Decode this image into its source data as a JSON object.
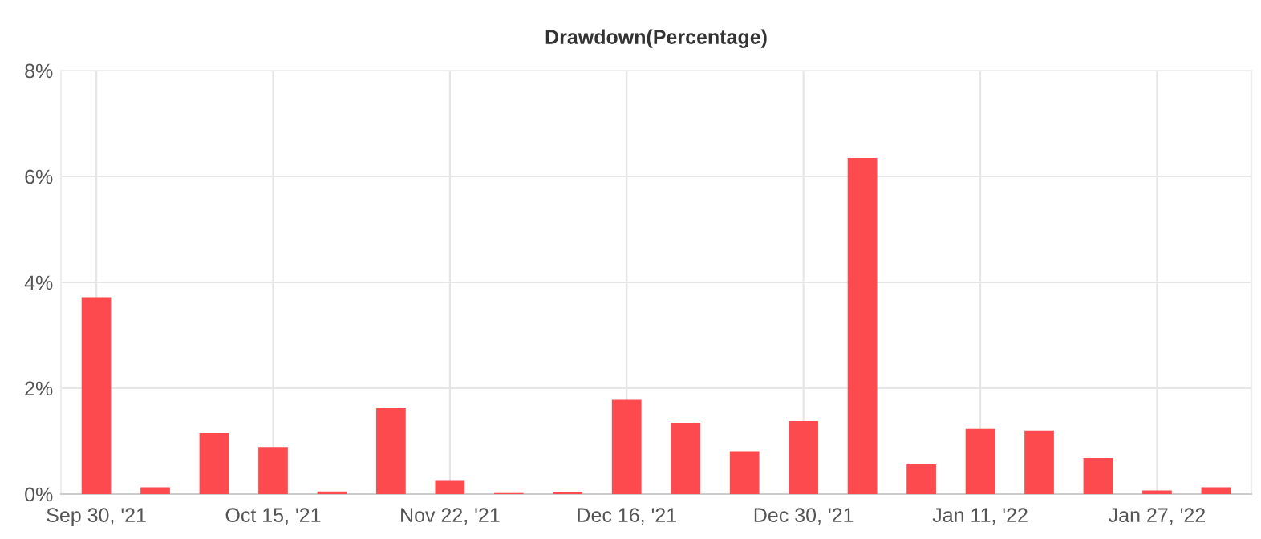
{
  "chart_data": {
    "type": "bar",
    "title": "Drawdown(Percentage)",
    "categories": [
      "Sep 30, '21",
      null,
      null,
      "Oct 15, '21",
      null,
      null,
      "Nov 22, '21",
      null,
      null,
      "Dec 16, '21",
      null,
      null,
      "Dec 30, '21",
      null,
      null,
      "Jan 11, '22",
      null,
      null,
      "Jan 27, '22",
      null
    ],
    "values": [
      3.72,
      0.13,
      1.15,
      0.89,
      0.05,
      1.62,
      0.25,
      0.02,
      0.04,
      1.78,
      1.35,
      0.81,
      1.38,
      6.35,
      0.56,
      1.23,
      1.2,
      0.68,
      0.07,
      0.13
    ],
    "color": "#fc4a4f",
    "ylim": [
      0,
      8
    ],
    "yticks": [
      {
        "value": 0,
        "label": "0%"
      },
      {
        "value": 2,
        "label": "2%"
      },
      {
        "value": 4,
        "label": "4%"
      },
      {
        "value": 6,
        "label": "6%"
      },
      {
        "value": 8,
        "label": "8%"
      }
    ],
    "grid": true,
    "legend": false
  }
}
